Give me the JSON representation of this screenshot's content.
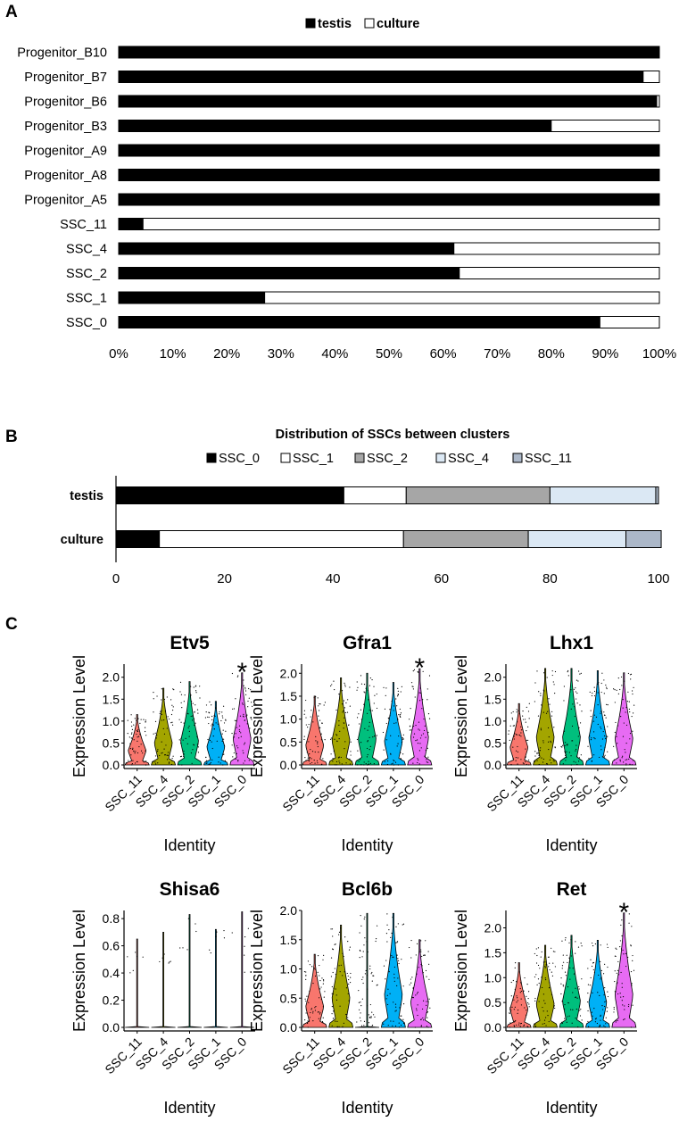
{
  "panels": [
    {
      "id": "A",
      "label": "A"
    },
    {
      "id": "B",
      "label": "B"
    },
    {
      "id": "C",
      "label": "C"
    }
  ],
  "chart_data": [
    {
      "panel": "A",
      "type": "bar",
      "orientation": "horizontal",
      "stacked": "percent",
      "title": "",
      "categories": [
        "Progenitor_B10",
        "Progenitor_B7",
        "Progenitor_B6",
        "Progenitor_B3",
        "Progenitor_A9",
        "Progenitor_A8",
        "Progenitor_A5",
        "SSC_11",
        "SSC_4",
        "SSC_2",
        "SSC_1",
        "SSC_0"
      ],
      "series": [
        {
          "name": "testis",
          "color": "#000000",
          "values": [
            100,
            97,
            99.5,
            80,
            100,
            100,
            100,
            4.5,
            62,
            63,
            27,
            89
          ]
        },
        {
          "name": "culture",
          "color": "#ffffff",
          "values": [
            0,
            3,
            0.5,
            20,
            0,
            0,
            0,
            95.5,
            38,
            37,
            73,
            11
          ]
        }
      ],
      "xticks": [
        "0%",
        "10%",
        "20%",
        "30%",
        "40%",
        "50%",
        "60%",
        "70%",
        "80%",
        "90%",
        "100%"
      ],
      "xlim": [
        0,
        100
      ],
      "legend": "top"
    },
    {
      "panel": "B",
      "type": "bar",
      "orientation": "horizontal",
      "stacked": "percent",
      "title": "Distribution of SSCs between clusters",
      "categories": [
        "testis",
        "culture"
      ],
      "series": [
        {
          "name": "SSC_0",
          "color": "#000000",
          "values": [
            42,
            8
          ]
        },
        {
          "name": "SSC_1",
          "color": "#ffffff",
          "values": [
            11.5,
            45
          ]
        },
        {
          "name": "SSC_2",
          "color": "#a6a6a6",
          "values": [
            26.5,
            23
          ]
        },
        {
          "name": "SSC_4",
          "color": "#dbe8f4",
          "values": [
            19.5,
            18
          ]
        },
        {
          "name": "SSC_11",
          "color": "#acb8c9",
          "values": [
            0.5,
            6.5
          ]
        }
      ],
      "xticks": [
        "0",
        "20",
        "40",
        "60",
        "80",
        "100"
      ],
      "xlim": [
        0,
        100
      ],
      "legend": "top"
    },
    {
      "panel": "C",
      "type": "violin",
      "xlabel": "Identity",
      "ylabel": "Expression Level",
      "categories": [
        "SSC_11",
        "SSC_4",
        "SSC_2",
        "SSC_1",
        "SSC_0"
      ],
      "category_colors": [
        "#f8766d",
        "#a3a500",
        "#00bf7d",
        "#00b0f6",
        "#e76bf3"
      ],
      "plots": [
        {
          "gene": "Etv5",
          "ylim": [
            0,
            2.3
          ],
          "yticks": [
            "0.0",
            "0.5",
            "1.0",
            "1.5",
            "2.0"
          ],
          "yvals": [
            0,
            0.5,
            1.0,
            1.5,
            2.0
          ],
          "max": [
            1.15,
            1.75,
            1.9,
            1.45,
            2.1
          ],
          "annotation": "*",
          "annotated_category": "SSC_0"
        },
        {
          "gene": "Gfra1",
          "ylim": [
            0,
            2.2
          ],
          "yticks": [
            "0.0",
            "0.5",
            "1.0",
            "1.5",
            "2.0"
          ],
          "yvals": [
            0,
            0.5,
            1.0,
            1.5,
            2.0
          ],
          "max": [
            1.5,
            1.9,
            2.0,
            1.8,
            2.1
          ],
          "annotation": "*",
          "annotated_category": "SSC_0"
        },
        {
          "gene": "Lhx1",
          "ylim": [
            0,
            2.3
          ],
          "yticks": [
            "0.0",
            "0.5",
            "1.0",
            "1.5",
            "2.0"
          ],
          "yvals": [
            0,
            0.5,
            1.0,
            1.5,
            2.0
          ],
          "max": [
            1.4,
            2.2,
            2.2,
            2.15,
            2.1
          ],
          "annotation": "",
          "annotated_category": ""
        },
        {
          "gene": "Shisa6",
          "ylim": [
            0,
            0.86
          ],
          "yticks": [
            "0.0",
            "0.2",
            "0.4",
            "0.6",
            "0.8"
          ],
          "yvals": [
            0,
            0.2,
            0.4,
            0.6,
            0.8
          ],
          "max": [
            0.65,
            0.7,
            0.83,
            0.72,
            0.85
          ],
          "annotation": "",
          "annotated_category": ""
        },
        {
          "gene": "Bcl6b",
          "ylim": [
            0,
            2.0
          ],
          "yticks": [
            "0.0",
            "0.5",
            "1.0",
            "1.5",
            "2.0"
          ],
          "yvals": [
            0,
            0.5,
            1.0,
            1.5,
            2.0
          ],
          "max": [
            1.25,
            1.75,
            1.95,
            1.95,
            1.5
          ],
          "annotation": "",
          "annotated_category": ""
        },
        {
          "gene": "Ret",
          "ylim": [
            0,
            2.35
          ],
          "yticks": [
            "0.0",
            "0.5",
            "1.0",
            "1.5",
            "2.0"
          ],
          "yvals": [
            0,
            0.5,
            1.0,
            1.5,
            2.0
          ],
          "max": [
            1.3,
            1.65,
            1.85,
            1.75,
            2.3
          ],
          "annotation": "*",
          "annotated_category": "SSC_0"
        }
      ]
    }
  ]
}
